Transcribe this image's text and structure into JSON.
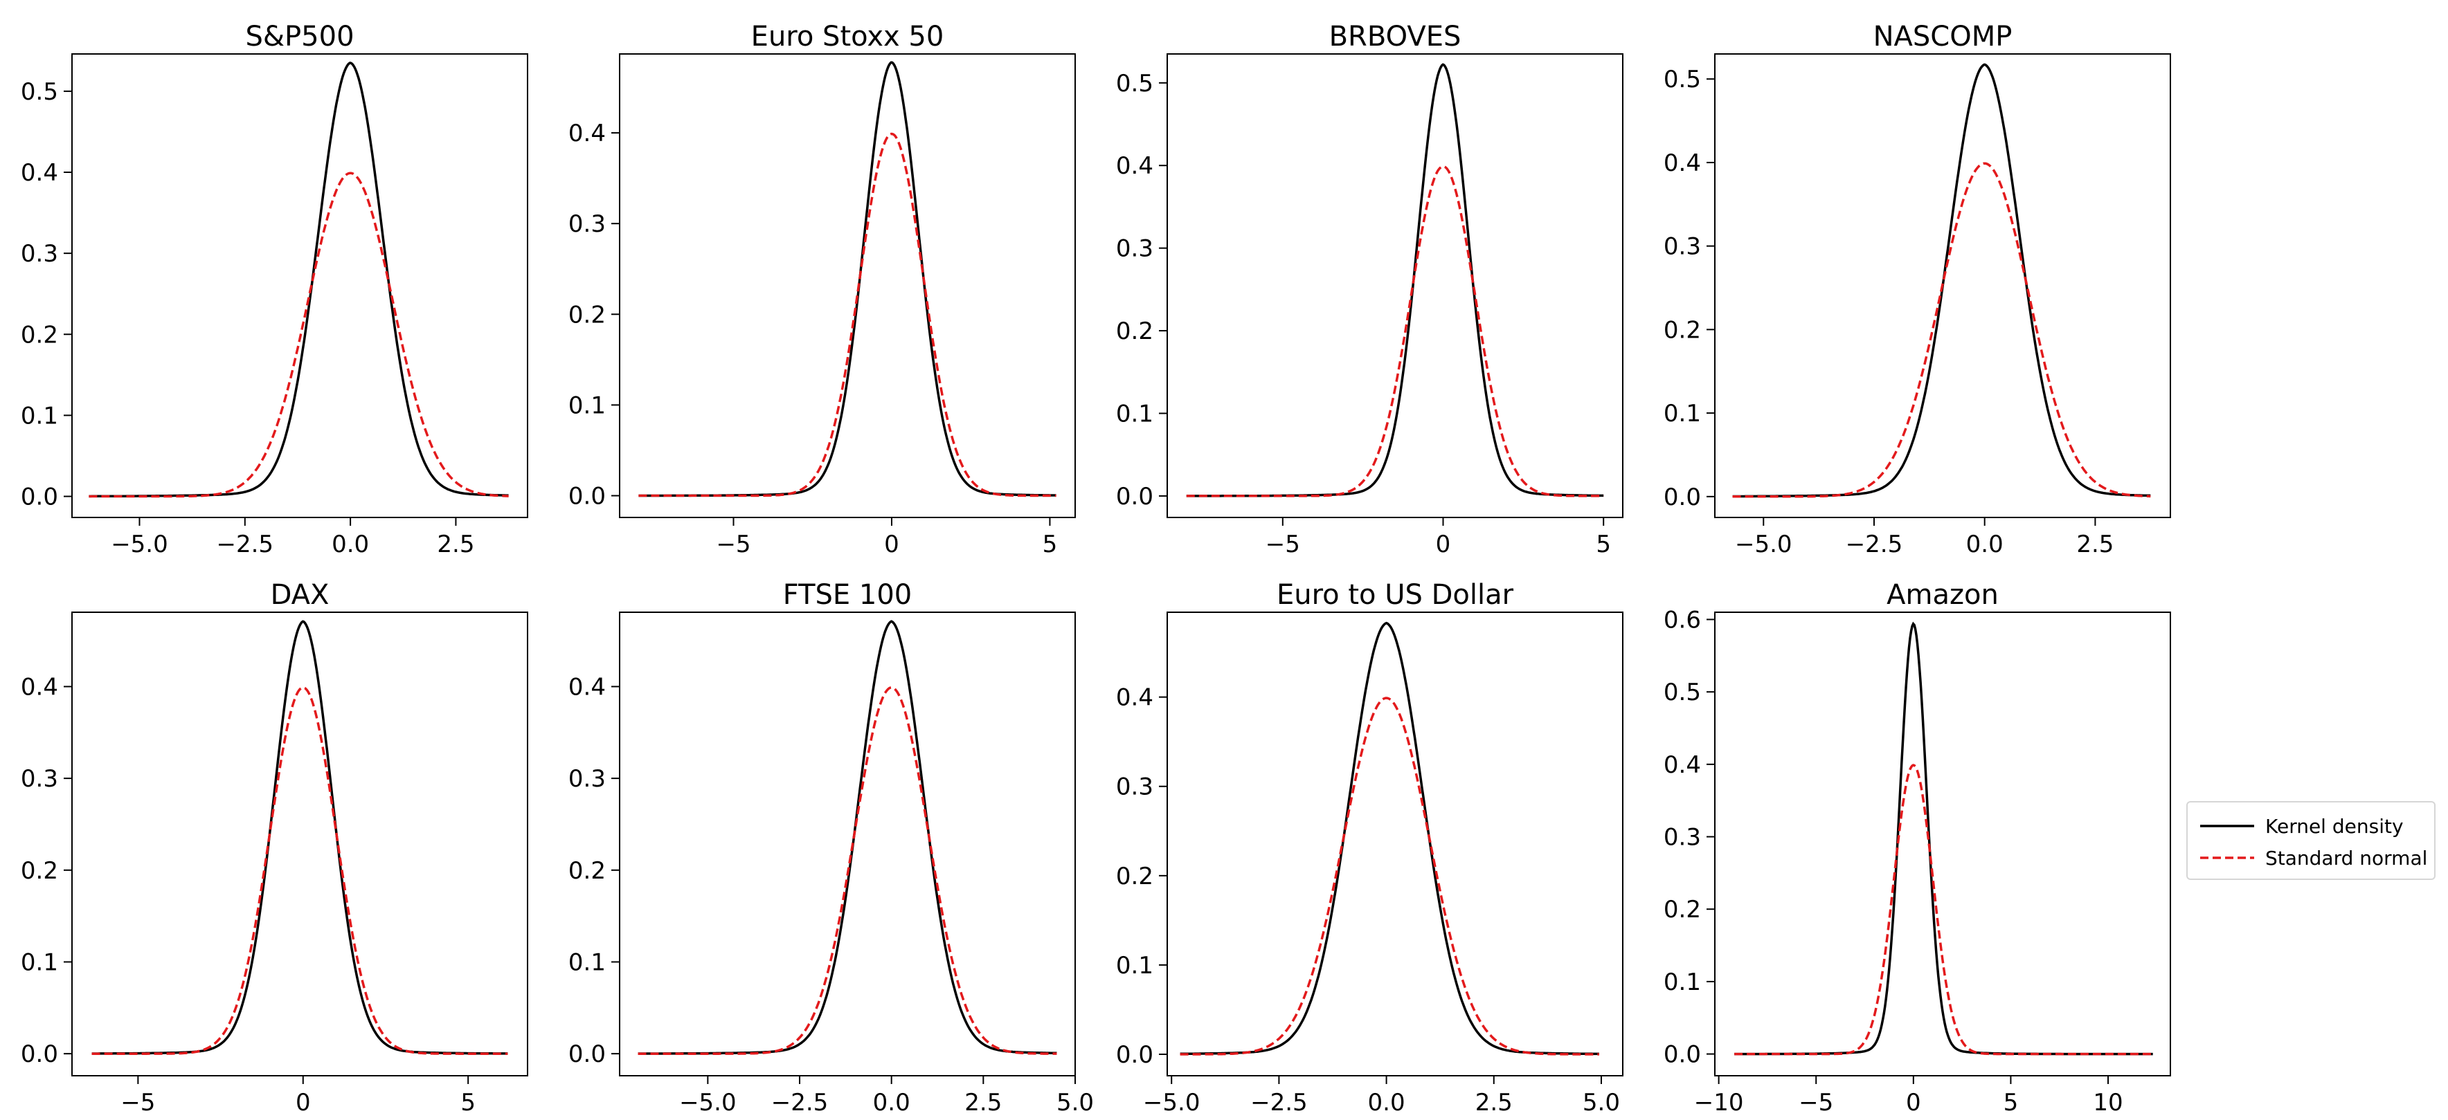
{
  "legend": {
    "kernel_label": "Kernel density",
    "normal_label": "Standard normal",
    "kernel_color": "#000000",
    "normal_color": "#e31a1c"
  },
  "chart_data": [
    {
      "type": "line",
      "title": "S&P500",
      "xlim": [
        -6.6,
        4.2
      ],
      "ylim": [
        -0.026,
        0.546
      ],
      "xticks": [
        -5.0,
        -2.5,
        0.0,
        2.5
      ],
      "xtick_labels": [
        "−5.0",
        "−2.5",
        "0.0",
        "2.5"
      ],
      "yticks": [
        0.0,
        0.1,
        0.2,
        0.3,
        0.4,
        0.5
      ],
      "ytick_labels": [
        "0.0",
        "0.1",
        "0.2",
        "0.3",
        "0.4",
        "0.5"
      ],
      "x_range": [
        -6.2,
        3.75
      ],
      "kde_peak": 0.523,
      "normal_peak": 0.399,
      "series": [
        {
          "name": "Kernel density",
          "style": "solid"
        },
        {
          "name": "Standard normal",
          "style": "dashed"
        }
      ]
    },
    {
      "type": "line",
      "title": "Euro Stoxx 50",
      "xlim": [
        -8.6,
        5.8
      ],
      "ylim": [
        -0.024,
        0.487
      ],
      "xticks": [
        -5,
        0,
        5
      ],
      "xtick_labels": [
        "−5",
        "0",
        "5"
      ],
      "yticks": [
        0.0,
        0.1,
        0.2,
        0.3,
        0.4
      ],
      "ytick_labels": [
        "0.0",
        "0.1",
        "0.2",
        "0.3",
        "0.4"
      ],
      "x_range": [
        -8.0,
        5.2
      ],
      "kde_peak": 0.465,
      "normal_peak": 0.399,
      "series": [
        {
          "name": "Kernel density",
          "style": "solid"
        },
        {
          "name": "Standard normal",
          "style": "dashed"
        }
      ]
    },
    {
      "type": "line",
      "title": "BRBOVES",
      "xlim": [
        -8.6,
        5.6
      ],
      "ylim": [
        -0.026,
        0.535
      ],
      "xticks": [
        -5,
        0,
        5
      ],
      "xtick_labels": [
        "−5",
        "0",
        "5"
      ],
      "yticks": [
        0.0,
        0.1,
        0.2,
        0.3,
        0.4,
        0.5
      ],
      "ytick_labels": [
        "0.0",
        "0.1",
        "0.2",
        "0.3",
        "0.4",
        "0.5"
      ],
      "x_range": [
        -8.0,
        5.0
      ],
      "kde_peak": 0.51,
      "normal_peak": 0.399,
      "series": [
        {
          "name": "Kernel density",
          "style": "solid"
        },
        {
          "name": "Standard normal",
          "style": "dashed"
        }
      ]
    },
    {
      "type": "line",
      "title": "NASCOMP",
      "xlim": [
        -6.1,
        4.2
      ],
      "ylim": [
        -0.025,
        0.53
      ],
      "xticks": [
        -5.0,
        -2.5,
        0.0,
        2.5
      ],
      "xtick_labels": [
        "−5.0",
        "−2.5",
        "0.0",
        "2.5"
      ],
      "yticks": [
        0.0,
        0.1,
        0.2,
        0.3,
        0.4,
        0.5
      ],
      "ytick_labels": [
        "0.0",
        "0.1",
        "0.2",
        "0.3",
        "0.4",
        "0.5"
      ],
      "x_range": [
        -5.7,
        3.75
      ],
      "kde_peak": 0.505,
      "normal_peak": 0.399,
      "series": [
        {
          "name": "Kernel density",
          "style": "solid"
        },
        {
          "name": "Standard normal",
          "style": "dashed"
        }
      ]
    },
    {
      "type": "line",
      "title": "DAX",
      "xlim": [
        -7.0,
        6.8
      ],
      "ylim": [
        -0.024,
        0.481
      ],
      "xticks": [
        -5,
        0,
        5
      ],
      "xtick_labels": [
        "−5",
        "0",
        "5"
      ],
      "yticks": [
        0.0,
        0.1,
        0.2,
        0.3,
        0.4
      ],
      "ytick_labels": [
        "0.0",
        "0.1",
        "0.2",
        "0.3",
        "0.4"
      ],
      "x_range": [
        -6.4,
        6.2
      ],
      "kde_peak": 0.458,
      "normal_peak": 0.399,
      "series": [
        {
          "name": "Kernel density",
          "style": "solid"
        },
        {
          "name": "Standard normal",
          "style": "dashed"
        }
      ]
    },
    {
      "type": "line",
      "title": "FTSE 100",
      "xlim": [
        -7.4,
        5.0
      ],
      "ylim": [
        -0.024,
        0.481
      ],
      "xticks": [
        -5.0,
        -2.5,
        0.0,
        2.5,
        5.0
      ],
      "xtick_labels": [
        "−5.0",
        "−2.5",
        "0.0",
        "2.5",
        "5.0"
      ],
      "yticks": [
        0.0,
        0.1,
        0.2,
        0.3,
        0.4
      ],
      "ytick_labels": [
        "0.0",
        "0.1",
        "0.2",
        "0.3",
        "0.4"
      ],
      "x_range": [
        -6.9,
        4.5
      ],
      "kde_peak": 0.458,
      "normal_peak": 0.399,
      "series": [
        {
          "name": "Kernel density",
          "style": "solid"
        },
        {
          "name": "Standard normal",
          "style": "dashed"
        }
      ]
    },
    {
      "type": "line",
      "title": "Euro to US Dollar",
      "xlim": [
        -5.1,
        5.5
      ],
      "ylim": [
        -0.024,
        0.495
      ],
      "xticks": [
        -5.0,
        -2.5,
        0.0,
        2.5,
        5.0
      ],
      "xtick_labels": [
        "−5.0",
        "−2.5",
        "0.0",
        "2.5",
        "5.0"
      ],
      "yticks": [
        0.0,
        0.1,
        0.2,
        0.3,
        0.4
      ],
      "ytick_labels": [
        "0.0",
        "0.1",
        "0.2",
        "0.3",
        "0.4"
      ],
      "x_range": [
        -4.8,
        4.95
      ],
      "kde_peak": 0.47,
      "normal_peak": 0.399,
      "series": [
        {
          "name": "Kernel density",
          "style": "solid"
        },
        {
          "name": "Standard normal",
          "style": "dashed"
        }
      ]
    },
    {
      "type": "line",
      "title": "Amazon",
      "xlim": [
        -10.2,
        13.2
      ],
      "ylim": [
        -0.03,
        0.61
      ],
      "xticks": [
        -10,
        -5,
        0,
        5,
        10
      ],
      "xtick_labels": [
        "−10",
        "−5",
        "0",
        "5",
        "10"
      ],
      "yticks": [
        0.0,
        0.1,
        0.2,
        0.3,
        0.4,
        0.5,
        0.6
      ],
      "ytick_labels": [
        "0.0",
        "0.1",
        "0.2",
        "0.3",
        "0.4",
        "0.5",
        "0.6"
      ],
      "x_range": [
        -9.2,
        12.3
      ],
      "kde_peak": 0.583,
      "normal_peak": 0.399,
      "series": [
        {
          "name": "Kernel density",
          "style": "solid"
        },
        {
          "name": "Standard normal",
          "style": "dashed"
        }
      ]
    }
  ]
}
